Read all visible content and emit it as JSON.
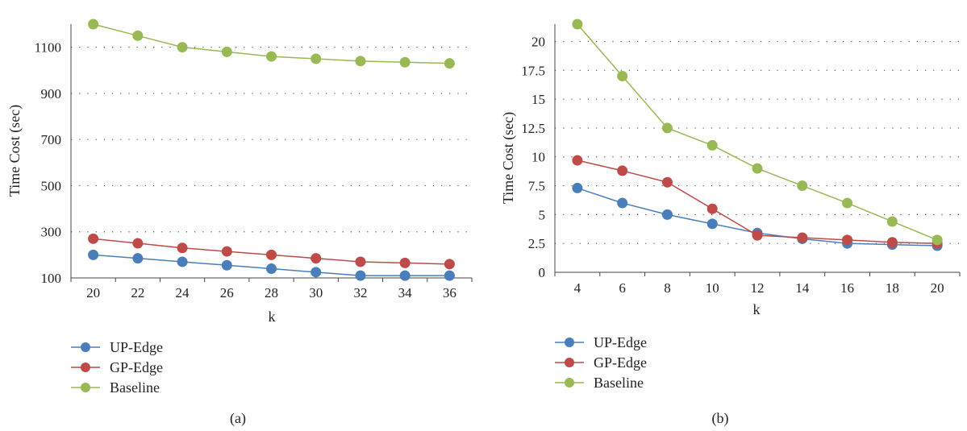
{
  "chart_data": [
    {
      "type": "line",
      "caption": "(a)",
      "xlabel": "k",
      "ylabel": "Time Cost (sec)",
      "x": [
        20,
        22,
        24,
        26,
        28,
        30,
        32,
        34,
        36
      ],
      "ylim": [
        100,
        1200
      ],
      "yticks": [
        "100",
        "300",
        "500",
        "700",
        "900",
        "1100"
      ],
      "grid": "horizontal dotted",
      "legend": "bottom-left",
      "series": [
        {
          "name": "UP-Edge",
          "color": "#4a7ebb",
          "values": [
            200,
            185,
            170,
            155,
            140,
            125,
            110,
            110,
            110
          ]
        },
        {
          "name": "GP-Edge",
          "color": "#be4b48",
          "values": [
            270,
            250,
            230,
            215,
            200,
            185,
            170,
            165,
            160
          ]
        },
        {
          "name": "Baseline",
          "color": "#98b954",
          "values": [
            1200,
            1150,
            1100,
            1080,
            1060,
            1050,
            1040,
            1035,
            1030
          ]
        }
      ]
    },
    {
      "type": "line",
      "caption": "(b)",
      "xlabel": "k",
      "ylabel": "Time Cost (sec)",
      "x": [
        4,
        6,
        8,
        10,
        12,
        14,
        16,
        18,
        20
      ],
      "ylim": [
        0,
        21.5
      ],
      "yticks": [
        "0",
        "2.5",
        "5",
        "7.5",
        "10",
        "12.5",
        "15",
        "17.5",
        "20"
      ],
      "grid": "horizontal dotted",
      "legend": "bottom-left",
      "series": [
        {
          "name": "UP-Edge",
          "color": "#4a7ebb",
          "values": [
            7.3,
            6.0,
            5.0,
            4.2,
            3.4,
            2.9,
            2.5,
            2.4,
            2.3
          ]
        },
        {
          "name": "GP-Edge",
          "color": "#be4b48",
          "values": [
            9.7,
            8.8,
            7.8,
            5.5,
            3.2,
            3.0,
            2.8,
            2.6,
            2.5
          ]
        },
        {
          "name": "Baseline",
          "color": "#98b954",
          "values": [
            21.5,
            17.0,
            12.5,
            11.0,
            9.0,
            7.5,
            6.0,
            4.4,
            2.8
          ]
        }
      ]
    }
  ]
}
